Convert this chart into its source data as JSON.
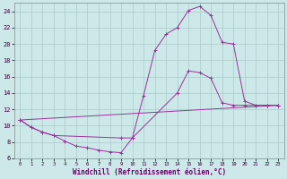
{
  "xlabel": "Windchill (Refroidissement éolien,°C)",
  "bg_color": "#cce8e8",
  "grid_color": "#aacccc",
  "line_color": "#993399",
  "xlim": [
    -0.5,
    23.5
  ],
  "ylim": [
    6,
    25
  ],
  "yticks": [
    6,
    8,
    10,
    12,
    14,
    16,
    18,
    20,
    22,
    24
  ],
  "xticks": [
    0,
    1,
    2,
    3,
    4,
    5,
    6,
    7,
    8,
    9,
    10,
    11,
    12,
    13,
    14,
    15,
    16,
    17,
    18,
    19,
    20,
    21,
    22,
    23
  ],
  "line1_x": [
    0,
    1,
    2,
    3,
    4,
    5,
    6,
    7,
    8,
    9,
    10,
    11,
    12,
    13,
    14,
    15,
    16,
    17,
    18,
    19,
    20,
    21,
    22,
    23
  ],
  "line1_y": [
    10.7,
    9.8,
    9.2,
    8.8,
    8.1,
    7.5,
    7.3,
    7.0,
    6.8,
    6.7,
    8.5,
    13.7,
    19.2,
    21.2,
    22.0,
    24.1,
    24.6,
    23.5,
    20.2,
    20.0,
    13.0,
    12.5,
    12.5,
    12.5
  ],
  "line2_x": [
    0,
    1,
    2,
    3,
    9,
    10,
    14,
    15,
    16,
    17,
    18,
    19,
    20,
    21,
    22,
    23
  ],
  "line2_y": [
    10.7,
    9.8,
    9.2,
    8.8,
    8.5,
    8.5,
    14.0,
    16.7,
    16.5,
    15.8,
    12.8,
    12.5,
    12.5,
    12.5,
    12.5,
    12.5
  ],
  "line3_x": [
    0,
    23
  ],
  "line3_y": [
    10.7,
    12.5
  ]
}
